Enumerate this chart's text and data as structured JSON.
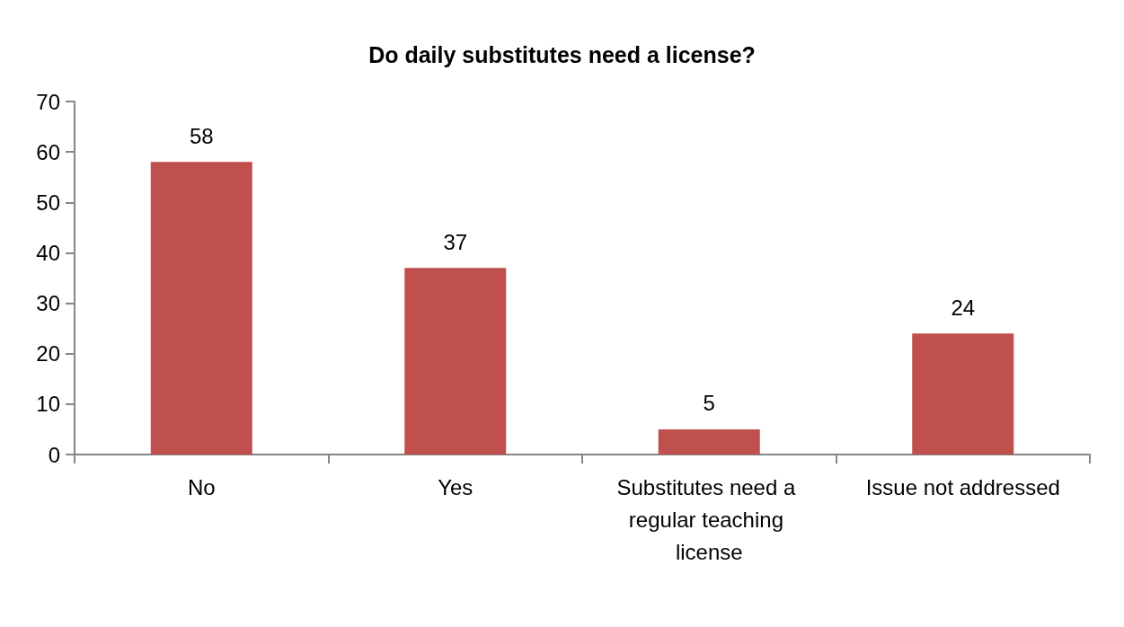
{
  "chart_data": {
    "type": "bar",
    "title": "Do daily substitutes need a license?",
    "categories": [
      "No",
      "Yes",
      "Substitutes need a regular teaching license",
      "Issue not addressed"
    ],
    "values": [
      58,
      37,
      5,
      24
    ],
    "color": "#c0504d",
    "ylim": [
      0,
      70
    ],
    "yticks": [
      0,
      10,
      20,
      30,
      40,
      50,
      60,
      70
    ],
    "data_labels": true,
    "grid": false
  }
}
